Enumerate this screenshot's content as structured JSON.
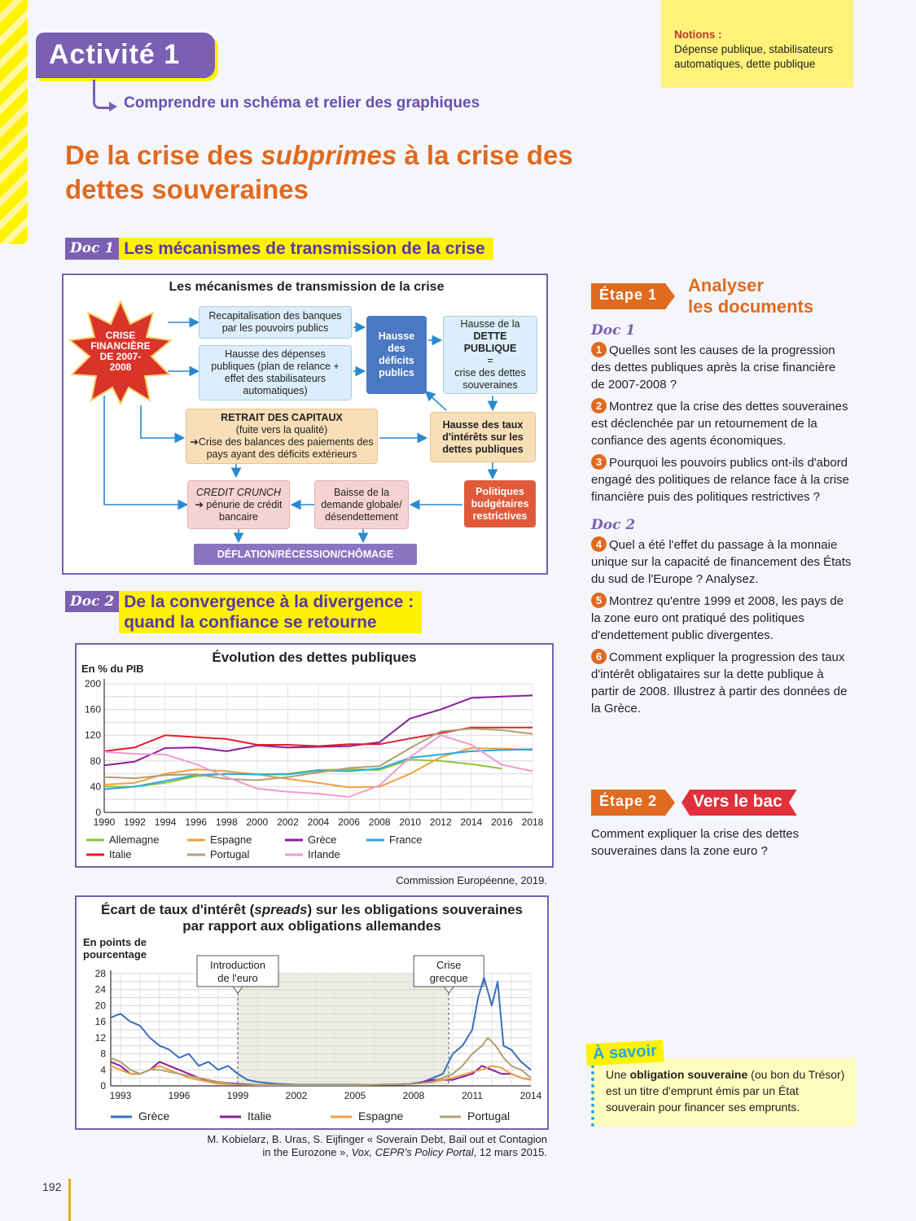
{
  "activity": {
    "tag": "Activité 1",
    "subtitle": "Comprendre un schéma et relier des graphiques"
  },
  "notions": {
    "label": "Notions :",
    "text": "Dépense publique, stabilisateurs automatiques, dette publique"
  },
  "title": {
    "part1": "De la crise des ",
    "italic": "subprimes",
    "part2": " à la crise des dettes souveraines"
  },
  "doc1": {
    "badge": "Doc 1",
    "title": "Les mécanismes de transmission de la crise",
    "diagram": {
      "title": "Les mécanismes de transmission de la crise",
      "crisis": "CRISE FINANCIÈRE DE 2007-2008",
      "recap": "Recapitalisation des banques par les pouvoirs publics",
      "depenses": "Hausse des dépenses publiques (plan de relance + effet des stabilisateurs automatiques)",
      "deficits": "Hausse des déficits publics",
      "dette_line1": "Hausse de la",
      "dette_line2": "DETTE PUBLIQUE",
      "dette_line3": "=",
      "dette_line4": "crise des dettes souveraines",
      "retrait_title": "RETRAIT DES CAPITAUX",
      "retrait_line1": "(fuite vers la qualité)",
      "retrait_line2": "➔Crise des balances des paiements des pays ayant des déficits extérieurs",
      "taux": "Hausse des taux d'intérêts sur les dettes publiques",
      "credit_line1": "CREDIT CRUNCH",
      "credit_line2": "➔ pénurie de crédit bancaire",
      "baisse": "Baisse de la demande globale/ désendettement",
      "politiques": "Politiques budgétaires restrictives",
      "deflation": "DÉFLATION/RÉCESSION/CHÔMAGE"
    }
  },
  "doc2": {
    "badge": "Doc 2",
    "title_line1": "De la convergence à la divergence :",
    "title_line2": "quand la confiance se retourne"
  },
  "chart_data": [
    {
      "type": "line",
      "title": "Évolution des dettes publiques",
      "ylabel": "En % du PIB",
      "x": [
        1990,
        1992,
        1994,
        1996,
        1998,
        2000,
        2002,
        2004,
        2006,
        2008,
        2010,
        2012,
        2014,
        2016,
        2018
      ],
      "xticks": [
        "1990",
        "1992",
        "1994",
        "1996",
        "1998",
        "2000",
        "2002",
        "2004",
        "2006",
        "2008",
        "2010",
        "2012",
        "2014",
        "2016",
        "2018"
      ],
      "yticks": [
        "0",
        "40",
        "80",
        "120",
        "160",
        "200"
      ],
      "ylim": [
        0,
        200
      ],
      "series": [
        {
          "name": "Allemagne",
          "color": "#8cc63f",
          "values": [
            40,
            40,
            46,
            56,
            60,
            59,
            60,
            66,
            67,
            66,
            82,
            80,
            75,
            68,
            null
          ]
        },
        {
          "name": "Espagne",
          "color": "#f0a040",
          "values": [
            43,
            46,
            60,
            67,
            64,
            59,
            52,
            46,
            39,
            40,
            60,
            86,
            100,
            99,
            97
          ]
        },
        {
          "name": "Grèce",
          "color": "#8a1e9b",
          "values": [
            73,
            79,
            100,
            101,
            95,
            104,
            101,
            102,
            103,
            109,
            146,
            160,
            178,
            180,
            182
          ]
        },
        {
          "name": "France",
          "color": "#2aa8e0",
          "values": [
            36,
            40,
            49,
            58,
            60,
            59,
            59,
            65,
            64,
            68,
            85,
            90,
            95,
            97,
            98
          ]
        },
        {
          "name": "Italie",
          "color": "#e0202a",
          "values": [
            95,
            101,
            120,
            117,
            114,
            105,
            105,
            103,
            106,
            106,
            115,
            123,
            132,
            132,
            132
          ]
        },
        {
          "name": "Portugal",
          "color": "#b0a070",
          "values": [
            55,
            53,
            58,
            59,
            52,
            50,
            55,
            62,
            69,
            72,
            100,
            126,
            130,
            128,
            122
          ]
        },
        {
          "name": "Irlande",
          "color": "#f09ad0",
          "values": [
            94,
            91,
            90,
            75,
            55,
            37,
            32,
            29,
            24,
            42,
            86,
            120,
            105,
            74,
            64
          ]
        }
      ],
      "source": "Commission Européenne, 2019."
    },
    {
      "type": "line",
      "title_line1": "Écart de taux d'intérêt (",
      "title_italic": "spreads",
      "title_line1_end": ") sur les obligations souveraines",
      "title_line2": "par rapport aux obligations allemandes",
      "ylabel_line1": "En points de",
      "ylabel_line2": "pourcentage",
      "xticks": [
        "1993",
        "1996",
        "1999",
        "2002",
        "2005",
        "2008",
        "2011",
        "2014"
      ],
      "yticks": [
        "0",
        "4",
        "8",
        "12",
        "16",
        "20",
        "24",
        "28"
      ],
      "xlim": [
        1992.5,
        2014
      ],
      "ylim": [
        0,
        28
      ],
      "annotations": [
        {
          "text_line1": "Introduction",
          "text_line2": "de l'euro",
          "x": 1999
        },
        {
          "text_line1": "Crise",
          "text_line2": "grecque",
          "x": 2009.8
        }
      ],
      "series": [
        {
          "name": "Grèce",
          "color": "#3a6fc0",
          "x": [
            1992.5,
            1993,
            1993.5,
            1994,
            1994.5,
            1995,
            1995.5,
            1996,
            1996.5,
            1997,
            1997.5,
            1998,
            1998.5,
            1999,
            1999.5,
            2000,
            2001,
            2002,
            2005,
            2007.5,
            2008.5,
            2009,
            2009.5,
            2010,
            2010.5,
            2011,
            2011.3,
            2011.6,
            2012,
            2012.3,
            2012.6,
            2013,
            2013.5,
            2014
          ],
          "values": [
            17,
            18,
            16,
            15,
            12,
            10,
            9,
            7,
            8,
            5,
            6,
            4,
            5,
            3,
            1.5,
            1,
            0.5,
            0.3,
            0.3,
            0.3,
            1,
            2,
            3,
            8,
            10,
            14,
            22,
            27,
            20,
            26,
            10,
            9,
            6,
            4
          ]
        },
        {
          "name": "Italie",
          "color": "#8a1e9b",
          "x": [
            1992.5,
            1993,
            1993.5,
            1994,
            1994.5,
            1995,
            1995.5,
            1996,
            1996.5,
            1997,
            1997.5,
            1998,
            1999,
            2000,
            2002,
            2005,
            2008,
            2009,
            2010,
            2011,
            2011.5,
            2012,
            2012.5,
            2013,
            2013.5,
            2014
          ],
          "values": [
            6,
            5,
            3,
            3,
            4,
            6,
            5,
            4,
            3,
            2,
            1,
            1,
            0.5,
            0.3,
            0.2,
            0.2,
            0.5,
            1.5,
            1.5,
            3,
            5,
            4,
            3,
            3,
            2,
            1.5
          ]
        },
        {
          "name": "Espagne",
          "color": "#f0a040",
          "x": [
            1992.5,
            1993,
            1993.5,
            1994,
            1994.5,
            1995,
            1995.5,
            1996,
            1996.5,
            1997,
            1997.5,
            1998,
            1999,
            2000,
            2002,
            2005,
            2008,
            2009,
            2010,
            2011,
            2011.5,
            2012,
            2012.5,
            2013,
            2013.5,
            2014
          ],
          "values": [
            5,
            4,
            3,
            3,
            4,
            5,
            4,
            3,
            2,
            1.5,
            1,
            0.5,
            0.3,
            0.2,
            0.2,
            0.2,
            0.5,
            1,
            2,
            3.5,
            4,
            5,
            4.5,
            3,
            2,
            1.5
          ]
        },
        {
          "name": "Portugal",
          "color": "#b0a070",
          "x": [
            1992.5,
            1993,
            1993.5,
            1994,
            1994.5,
            1995,
            1995.5,
            1996,
            1997,
            1998,
            1999,
            2000,
            2002,
            2005,
            2008,
            2009,
            2010,
            2010.5,
            2011,
            2011.5,
            2011.8,
            2012.2,
            2012.6,
            2013,
            2013.5,
            2014
          ],
          "values": [
            7,
            6,
            4,
            3,
            4,
            4,
            3.5,
            3,
            2,
            1,
            0.3,
            0.3,
            0.2,
            0.2,
            0.5,
            1,
            3,
            5,
            8,
            10,
            12,
            10,
            7,
            5,
            4,
            2
          ]
        }
      ],
      "source_line1": "M. Kobielarz, B. Uras, S. Eijfinger « Soverain Debt, Bail out et Contagion",
      "source_line2_prefix": "in the Eurozone », ",
      "source_italic": "Vox, CEPR's Policy Portal",
      "source_line2_suffix": ", 12 mars 2015."
    }
  ],
  "etape1": {
    "tag": "Étape 1",
    "title_line1": "Analyser",
    "title_line2": "les documents",
    "doc1_label": "Doc 1",
    "doc2_label": "Doc 2",
    "questions": [
      {
        "num": "1",
        "text": "Quelles sont les causes de la progression des dettes publiques après la crise financière de 2007-2008 ?"
      },
      {
        "num": "2",
        "text": "Montrez que la crise des dettes souveraines est déclenchée par un retournement de la confiance des agents économiques."
      },
      {
        "num": "3",
        "text": "Pourquoi les pouvoirs publics ont-ils d'abord engagé des politiques de relance face à la crise financière puis des politiques restrictives ?"
      },
      {
        "num": "4",
        "text": "Quel a été l'effet du passage à la monnaie unique sur la capacité de financement des États du sud de l'Europe ? Analysez."
      },
      {
        "num": "5",
        "text": "Montrez qu'entre 1999 et 2008, les pays de la zone euro ont pratiqué des politiques d'endettement public divergentes."
      },
      {
        "num": "6",
        "text": "Comment expliquer la progression des taux d'intérêt obligataires sur la dette publique à partir de 2008. Illustrez à partir des données de la Grèce."
      }
    ]
  },
  "etape2": {
    "tag": "Étape 2",
    "bac": "Vers le bac",
    "question": "Comment expliquer la crise des dettes souveraines dans la zone euro ?"
  },
  "asavoir": {
    "tag": "À savoir",
    "pre": "Une ",
    "bold": "obligation souveraine",
    "post": " (ou bon du Trésor) est un titre d'emprunt émis par un État souverain pour financer ses emprunts."
  },
  "page_number": "192"
}
